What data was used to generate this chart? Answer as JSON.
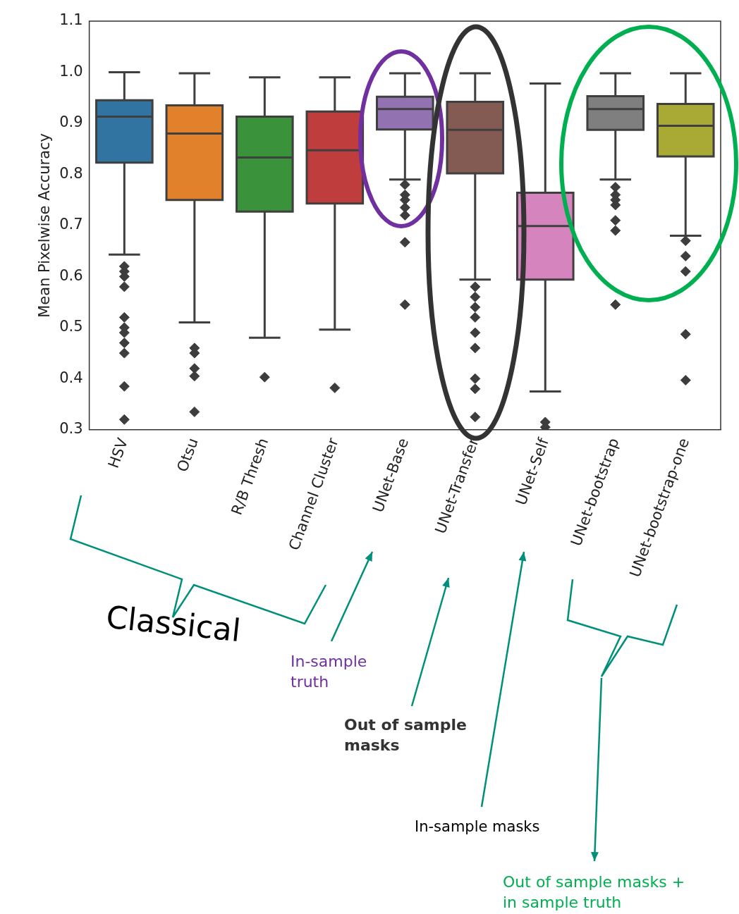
{
  "chart_data": {
    "type": "box",
    "ylabel": "Mean Pixelwise Accuracy",
    "categories": [
      "HSV",
      "Otsu",
      "R/B Thresh",
      "Channel Cluster",
      "UNet-Base",
      "UNet-Transfer",
      "UNet-Self",
      "UNet-bootstrap",
      "UNet-bootstrap-one"
    ],
    "colors": [
      "#3274a1",
      "#e1812c",
      "#3a923a",
      "#c03d3e",
      "#9372b2",
      "#845b53",
      "#d684bd",
      "#7f7f7f",
      "#a9aa35"
    ],
    "boxes": [
      {
        "low": 0.643,
        "q1": 0.823,
        "median": 0.913,
        "q3": 0.945,
        "high": 1.0,
        "outliers": [
          0.62,
          0.61,
          0.6,
          0.58,
          0.52,
          0.5,
          0.49,
          0.47,
          0.45,
          0.385,
          0.32
        ]
      },
      {
        "low": 0.51,
        "q1": 0.75,
        "median": 0.88,
        "q3": 0.935,
        "high": 0.998,
        "outliers": [
          0.46,
          0.45,
          0.42,
          0.405,
          0.335
        ]
      },
      {
        "low": 0.48,
        "q1": 0.727,
        "median": 0.833,
        "q3": 0.913,
        "high": 0.99,
        "outliers": [
          0.403
        ]
      },
      {
        "low": 0.496,
        "q1": 0.743,
        "median": 0.847,
        "q3": 0.923,
        "high": 0.99,
        "outliers": [
          0.382
        ]
      },
      {
        "low": 0.79,
        "q1": 0.888,
        "median": 0.928,
        "q3": 0.952,
        "high": 0.998,
        "outliers": [
          0.78,
          0.76,
          0.75,
          0.735,
          0.72,
          0.667,
          0.545
        ]
      },
      {
        "low": 0.594,
        "q1": 0.802,
        "median": 0.887,
        "q3": 0.942,
        "high": 0.998,
        "outliers": [
          0.58,
          0.56,
          0.54,
          0.52,
          0.49,
          0.46,
          0.4,
          0.38,
          0.325
        ]
      },
      {
        "low": 0.375,
        "q1": 0.594,
        "median": 0.699,
        "q3": 0.764,
        "high": 0.978,
        "outliers": [
          0.315,
          0.305
        ]
      },
      {
        "low": 0.79,
        "q1": 0.887,
        "median": 0.928,
        "q3": 0.953,
        "high": 0.998,
        "outliers": [
          0.775,
          0.76,
          0.75,
          0.74,
          0.71,
          0.69,
          0.545
        ]
      },
      {
        "low": 0.68,
        "q1": 0.835,
        "median": 0.895,
        "q3": 0.938,
        "high": 0.998,
        "outliers": [
          0.67,
          0.64,
          0.61,
          0.487,
          0.397
        ]
      }
    ],
    "ylim": [
      0.3,
      1.1
    ],
    "yticks": [
      0.3,
      0.4,
      0.5,
      0.6,
      0.7,
      0.8,
      0.9,
      {
        "value": 1.0,
        "label": "1.0"
      },
      1.1
    ],
    "marker": "diamond",
    "grid": false,
    "legend": false,
    "annotations": [
      "Classical",
      "In-sample truth",
      "Out of sample masks",
      "In-sample masks",
      "Out of sample masks + in sample truth"
    ]
  }
}
